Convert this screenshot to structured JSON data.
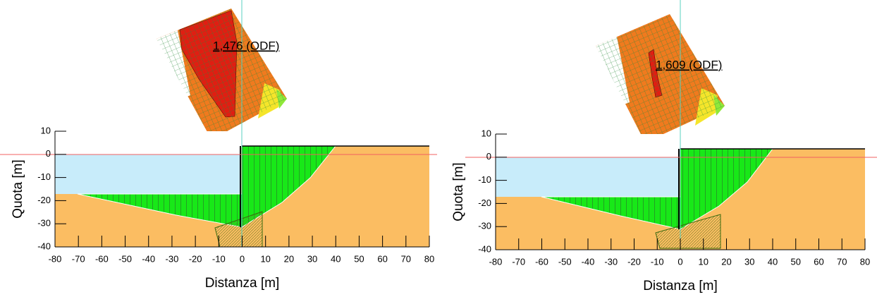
{
  "chart_data": [
    {
      "type": "section",
      "x_label": "Distanza [m]",
      "y_label": "Quota [m]",
      "annotation": "1,476 (ODF)",
      "xlim": [
        -80,
        80
      ],
      "ylim": [
        -40,
        10
      ],
      "xticks": [
        -80,
        -70,
        -60,
        -50,
        -40,
        -30,
        -20,
        -10,
        0,
        10,
        20,
        30,
        40,
        50,
        60,
        70,
        80
      ],
      "yticks": [
        10,
        0,
        -10,
        -20,
        -30,
        -40
      ]
    },
    {
      "type": "section",
      "x_label": "Distanza [m]",
      "y_label": "Quota [m]",
      "annotation": "1,609 (ODF)",
      "xlim": [
        -80,
        80
      ],
      "ylim": [
        -40,
        10
      ],
      "xticks": [
        -80,
        -70,
        -60,
        -50,
        -40,
        -30,
        -20,
        -10,
        0,
        10,
        20,
        30,
        40,
        50,
        60,
        70,
        80
      ],
      "yticks": [
        10,
        0,
        -10,
        -20,
        -30,
        -40
      ]
    }
  ]
}
